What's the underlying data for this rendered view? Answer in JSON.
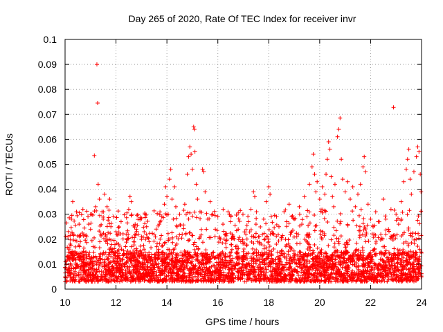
{
  "chart_data": {
    "type": "scatter",
    "title": "Day 265 of 2020, Rate Of TEC Index for receiver invr",
    "xlabel": "GPS time / hours",
    "ylabel": "ROTI / TECUs",
    "xlim": [
      10,
      24
    ],
    "ylim": [
      0,
      0.1
    ],
    "x_ticks": [
      10,
      12,
      14,
      16,
      18,
      20,
      22,
      24
    ],
    "x_tick_labels": [
      "10",
      "12",
      "14",
      "16",
      "18",
      "20",
      "22",
      "24"
    ],
    "y_ticks": [
      0,
      0.01,
      0.02,
      0.03,
      0.04,
      0.05,
      0.06,
      0.07,
      0.08,
      0.09,
      0.1
    ],
    "y_tick_labels": [
      "0",
      "0.01",
      "0.02",
      "0.03",
      "0.04",
      "0.05",
      "0.06",
      "0.07",
      "0.08",
      "0.09",
      "0.1"
    ],
    "grid": true,
    "marker": "plus",
    "marker_color": "#ff0000",
    "series": [
      {
        "name": "ROTI",
        "points": [
          [
            10.05,
            0.008
          ],
          [
            10.1,
            0.012
          ],
          [
            10.15,
            0.006
          ],
          [
            10.2,
            0.018
          ],
          [
            10.25,
            0.028
          ],
          [
            10.3,
            0.035
          ],
          [
            10.35,
            0.022
          ],
          [
            10.4,
            0.015
          ],
          [
            10.45,
            0.031
          ],
          [
            10.5,
            0.009
          ],
          [
            10.55,
            0.026
          ],
          [
            10.6,
            0.019
          ],
          [
            10.65,
            0.011
          ],
          [
            10.7,
            0.032
          ],
          [
            10.75,
            0.014
          ],
          [
            10.8,
            0.007
          ],
          [
            10.85,
            0.021
          ],
          [
            10.9,
            0.029
          ],
          [
            10.95,
            0.013
          ],
          [
            11.0,
            0.024
          ],
          [
            11.05,
            0.03
          ],
          [
            11.1,
            0.017
          ],
          [
            11.15,
            0.0535
          ],
          [
            11.2,
            0.033
          ],
          [
            11.25,
            0.09
          ],
          [
            11.28,
            0.0745
          ],
          [
            11.3,
            0.042
          ],
          [
            11.35,
            0.036
          ],
          [
            11.4,
            0.022
          ],
          [
            11.45,
            0.031
          ],
          [
            11.5,
            0.028
          ],
          [
            11.55,
            0.038
          ],
          [
            11.6,
            0.019
          ],
          [
            11.65,
            0.033
          ],
          [
            11.7,
            0.012
          ],
          [
            11.75,
            0.036
          ],
          [
            11.8,
            0.025
          ],
          [
            11.85,
            0.016
          ],
          [
            11.9,
            0.029
          ],
          [
            11.95,
            0.011
          ],
          [
            12.0,
            0.023
          ],
          [
            12.1,
            0.018
          ],
          [
            12.2,
            0.027
          ],
          [
            12.3,
            0.014
          ],
          [
            12.4,
            0.022
          ],
          [
            12.5,
            0.032
          ],
          [
            12.55,
            0.037
          ],
          [
            12.6,
            0.035
          ],
          [
            12.7,
            0.019
          ],
          [
            12.8,
            0.024
          ],
          [
            12.9,
            0.013
          ],
          [
            13.0,
            0.021
          ],
          [
            13.1,
            0.016
          ],
          [
            13.2,
            0.025
          ],
          [
            13.3,
            0.019
          ],
          [
            13.4,
            0.014
          ],
          [
            13.5,
            0.022
          ],
          [
            13.6,
            0.017
          ],
          [
            13.7,
            0.026
          ],
          [
            13.8,
            0.029
          ],
          [
            13.9,
            0.034
          ],
          [
            13.95,
            0.041
          ],
          [
            14.0,
            0.037
          ],
          [
            14.05,
            0.03
          ],
          [
            14.1,
            0.044
          ],
          [
            14.15,
            0.048
          ],
          [
            14.2,
            0.036
          ],
          [
            14.25,
            0.028
          ],
          [
            14.3,
            0.041
          ],
          [
            14.35,
            0.033
          ],
          [
            14.4,
            0.025
          ],
          [
            14.5,
            0.03
          ],
          [
            14.6,
            0.022
          ],
          [
            14.7,
            0.034
          ],
          [
            14.8,
            0.046
          ],
          [
            14.85,
            0.053
          ],
          [
            14.9,
            0.057
          ],
          [
            14.95,
            0.054
          ],
          [
            15.0,
            0.048
          ],
          [
            15.05,
            0.065
          ],
          [
            15.08,
            0.064
          ],
          [
            15.1,
            0.055
          ],
          [
            15.15,
            0.042
          ],
          [
            15.2,
            0.036
          ],
          [
            15.3,
            0.031
          ],
          [
            15.4,
            0.048
          ],
          [
            15.45,
            0.047
          ],
          [
            15.5,
            0.039
          ],
          [
            15.6,
            0.028
          ],
          [
            15.7,
            0.035
          ],
          [
            15.8,
            0.03
          ],
          [
            15.9,
            0.024
          ],
          [
            16.0,
            0.029
          ],
          [
            16.1,
            0.02
          ],
          [
            16.2,
            0.026
          ],
          [
            16.3,
            0.022
          ],
          [
            16.4,
            0.031
          ],
          [
            16.5,
            0.027
          ],
          [
            16.6,
            0.021
          ],
          [
            16.7,
            0.017
          ],
          [
            16.8,
            0.024
          ],
          [
            16.9,
            0.019
          ],
          [
            17.0,
            0.015
          ],
          [
            17.1,
            0.022
          ],
          [
            17.2,
            0.027
          ],
          [
            17.3,
            0.032
          ],
          [
            17.4,
            0.039
          ],
          [
            17.45,
            0.037
          ],
          [
            17.5,
            0.026
          ],
          [
            17.6,
            0.021
          ],
          [
            17.7,
            0.018
          ],
          [
            17.8,
            0.028
          ],
          [
            17.9,
            0.035
          ],
          [
            18.0,
            0.041
          ],
          [
            18.05,
            0.038
          ],
          [
            18.1,
            0.029
          ],
          [
            18.2,
            0.022
          ],
          [
            18.3,
            0.018
          ],
          [
            18.4,
            0.025
          ],
          [
            18.5,
            0.02
          ],
          [
            18.6,
            0.031
          ],
          [
            18.7,
            0.027
          ],
          [
            18.8,
            0.034
          ],
          [
            18.9,
            0.023
          ],
          [
            19.0,
            0.028
          ],
          [
            19.1,
            0.021
          ],
          [
            19.2,
            0.033
          ],
          [
            19.3,
            0.026
          ],
          [
            19.4,
            0.037
          ],
          [
            19.5,
            0.029
          ],
          [
            19.6,
            0.042
          ],
          [
            19.7,
            0.049
          ],
          [
            19.75,
            0.054
          ],
          [
            19.8,
            0.046
          ],
          [
            19.85,
            0.039
          ],
          [
            19.9,
            0.043
          ],
          [
            20.0,
            0.036
          ],
          [
            20.1,
            0.041
          ],
          [
            20.2,
            0.038
          ],
          [
            20.25,
            0.046
          ],
          [
            20.3,
            0.052
          ],
          [
            20.35,
            0.059
          ],
          [
            20.4,
            0.056
          ],
          [
            20.45,
            0.045
          ],
          [
            20.5,
            0.037
          ],
          [
            20.55,
            0.033
          ],
          [
            20.6,
            0.042
          ],
          [
            20.7,
            0.061
          ],
          [
            20.75,
            0.064
          ],
          [
            20.8,
            0.0685
          ],
          [
            20.85,
            0.052
          ],
          [
            20.9,
            0.044
          ],
          [
            21.0,
            0.039
          ],
          [
            21.1,
            0.043
          ],
          [
            21.2,
            0.036
          ],
          [
            21.3,
            0.041
          ],
          [
            21.4,
            0.033
          ],
          [
            21.5,
            0.038
          ],
          [
            21.6,
            0.042
          ],
          [
            21.7,
            0.049
          ],
          [
            21.75,
            0.053
          ],
          [
            21.8,
            0.047
          ],
          [
            21.9,
            0.034
          ],
          [
            22.0,
            0.028
          ],
          [
            22.1,
            0.025
          ],
          [
            22.2,
            0.031
          ],
          [
            22.3,
            0.027
          ],
          [
            22.4,
            0.022
          ],
          [
            22.5,
            0.036
          ],
          [
            22.6,
            0.028
          ],
          [
            22.7,
            0.024
          ],
          [
            22.8,
            0.032
          ],
          [
            22.9,
            0.0728
          ],
          [
            23.0,
            0.03
          ],
          [
            23.1,
            0.026
          ],
          [
            23.2,
            0.035
          ],
          [
            23.3,
            0.043
          ],
          [
            23.4,
            0.048
          ],
          [
            23.45,
            0.052
          ],
          [
            23.5,
            0.056
          ],
          [
            23.55,
            0.044
          ],
          [
            23.6,
            0.038
          ],
          [
            23.7,
            0.047
          ],
          [
            23.8,
            0.053
          ],
          [
            23.85,
            0.057
          ],
          [
            23.9,
            0.055
          ],
          [
            23.95,
            0.046
          ],
          [
            23.98,
            0.039
          ]
        ]
      }
    ],
    "density_band": {
      "description": "dense cloud of points",
      "low": 0.003,
      "high": 0.02
    }
  }
}
